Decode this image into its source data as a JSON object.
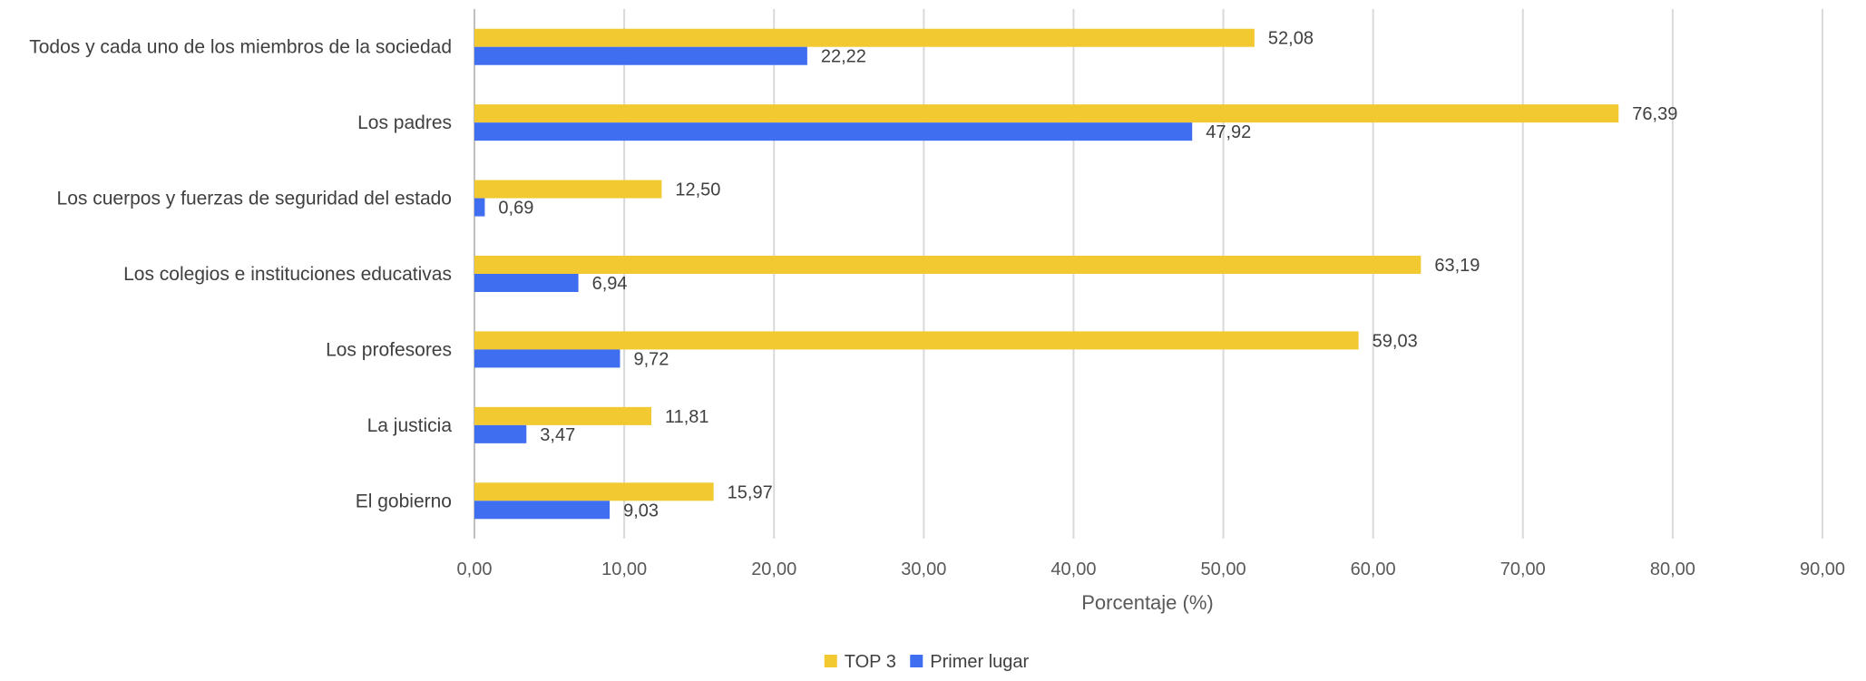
{
  "chart_data": {
    "type": "bar",
    "orientation": "horizontal",
    "categories": [
      "Todos y cada uno de los miembros de la sociedad",
      "Los padres",
      "Los cuerpos y fuerzas de seguridad del estado",
      "Los colegios e instituciones educativas",
      "Los profesores",
      "La justicia",
      "El gobierno"
    ],
    "series": [
      {
        "name": "TOP 3",
        "color": "#f2c931",
        "values": [
          52.08,
          76.39,
          12.5,
          63.19,
          59.03,
          11.81,
          15.97
        ],
        "labels": [
          "52,08",
          "76,39",
          "12,50",
          "63,19",
          "59,03",
          "11,81",
          "15,97"
        ]
      },
      {
        "name": "Primer lugar",
        "color": "#3f6ff0",
        "values": [
          22.22,
          47.92,
          0.69,
          6.94,
          9.72,
          3.47,
          9.03
        ],
        "labels": [
          "22,22",
          "47,92",
          "0,69",
          "6,94",
          "9,72",
          "3,47",
          "9,03"
        ]
      }
    ],
    "xlim": [
      0,
      90
    ],
    "xticks": [
      0,
      10,
      20,
      30,
      40,
      50,
      60,
      70,
      80,
      90
    ],
    "xtick_labels": [
      "0,00",
      "10,00",
      "20,00",
      "30,00",
      "40,00",
      "50,00",
      "60,00",
      "70,00",
      "80,00",
      "90,00"
    ],
    "xlabel": "Porcentaje (%)",
    "title": "",
    "grid": true,
    "legend_position": "bottom"
  }
}
